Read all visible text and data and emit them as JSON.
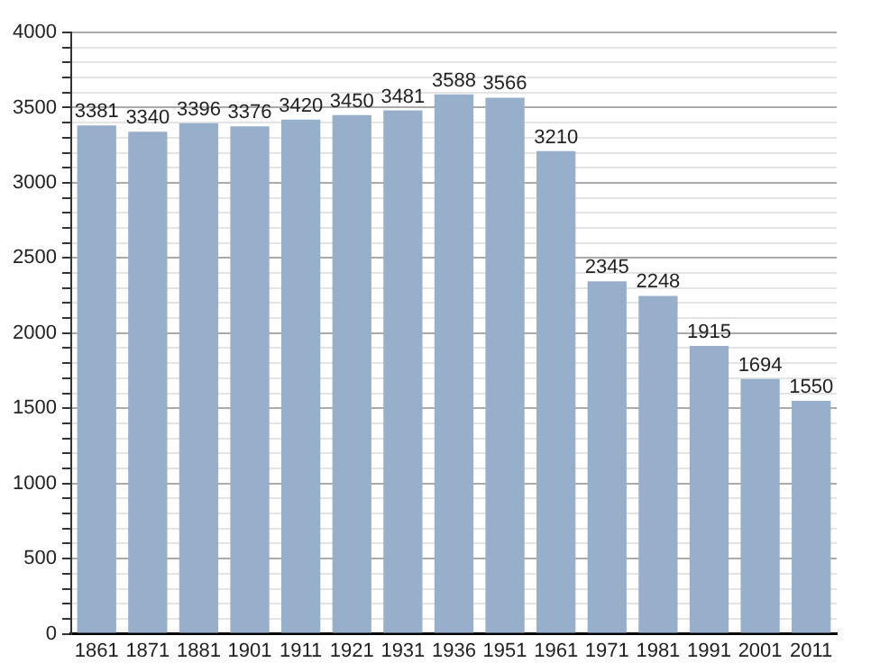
{
  "chart_data": {
    "type": "bar",
    "categories": [
      "1861",
      "1871",
      "1881",
      "1901",
      "1911",
      "1921",
      "1931",
      "1936",
      "1951",
      "1961",
      "1971",
      "1981",
      "1991",
      "2001",
      "2011"
    ],
    "values": [
      3381,
      3340,
      3396,
      3376,
      3420,
      3450,
      3481,
      3588,
      3566,
      3210,
      2345,
      2248,
      1915,
      1694,
      1550
    ],
    "color": "#98afcb",
    "ylim": [
      0,
      4000
    ],
    "yticks": [
      0,
      {
        "value": 100,
        "label": null
      },
      {
        "value": 200,
        "label": null
      },
      {
        "value": 300,
        "label": null
      },
      {
        "value": 400,
        "label": null
      },
      500,
      {
        "value": 600,
        "label": null
      },
      {
        "value": 700,
        "label": null
      },
      {
        "value": 800,
        "label": null
      },
      {
        "value": 900,
        "label": null
      },
      1000,
      {
        "value": 1100,
        "label": null
      },
      {
        "value": 1200,
        "label": null
      },
      {
        "value": 1300,
        "label": null
      },
      {
        "value": 1400,
        "label": null
      },
      1500,
      {
        "value": 1600,
        "label": null
      },
      {
        "value": 1700,
        "label": null
      },
      {
        "value": 1800,
        "label": null
      },
      {
        "value": 1900,
        "label": null
      },
      2000,
      {
        "value": 2100,
        "label": null
      },
      {
        "value": 2200,
        "label": null
      },
      {
        "value": 2300,
        "label": null
      },
      {
        "value": 2400,
        "label": null
      },
      2500,
      {
        "value": 2600,
        "label": null
      },
      {
        "value": 2700,
        "label": null
      },
      {
        "value": 2800,
        "label": null
      },
      {
        "value": 2900,
        "label": null
      },
      3000,
      {
        "value": 3100,
        "label": null
      },
      {
        "value": 3200,
        "label": null
      },
      {
        "value": 3300,
        "label": null
      },
      {
        "value": 3400,
        "label": null
      },
      3500,
      {
        "value": 3600,
        "label": null
      },
      {
        "value": 3700,
        "label": null
      },
      {
        "value": 3800,
        "label": null
      },
      {
        "value": 3900,
        "label": null
      },
      4000
    ],
    "grid": "y",
    "data_labels": true
  }
}
